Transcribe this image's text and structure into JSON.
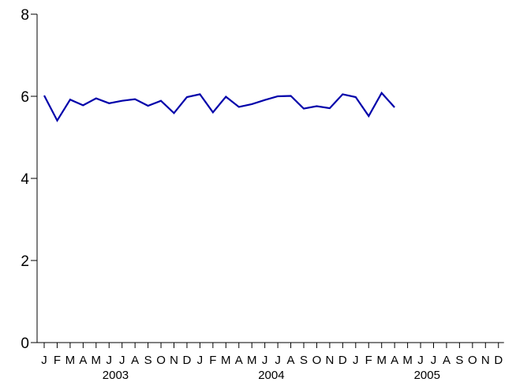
{
  "chart_data": {
    "type": "line",
    "title": "",
    "xlabel": "",
    "ylabel": "",
    "ylim": [
      0,
      8
    ],
    "yticks": [
      0,
      2,
      4,
      6,
      8
    ],
    "x_range": [
      "2003-01",
      "2005-12"
    ],
    "month_labels": [
      "J",
      "F",
      "M",
      "A",
      "M",
      "J",
      "J",
      "A",
      "S",
      "O",
      "N",
      "D",
      "J",
      "F",
      "M",
      "A",
      "M",
      "J",
      "J",
      "A",
      "S",
      "O",
      "N",
      "D",
      "J",
      "F",
      "M",
      "A",
      "M",
      "J",
      "J",
      "A",
      "S",
      "O",
      "N",
      "D"
    ],
    "year_labels": [
      {
        "label": "2003",
        "months": [
          "2003-01",
          "2003-12"
        ]
      },
      {
        "label": "2004",
        "months": [
          "2004-01",
          "2004-12"
        ]
      },
      {
        "label": "2005",
        "months": [
          "2005-01",
          "2005-12"
        ]
      }
    ],
    "grid": false,
    "legend": false,
    "series": [
      {
        "color": "#0000aa",
        "x": [
          "2003-01",
          "2003-02",
          "2003-03",
          "2003-04",
          "2003-05",
          "2003-06",
          "2003-07",
          "2003-08",
          "2003-09",
          "2003-10",
          "2003-11",
          "2003-12",
          "2004-01",
          "2004-02",
          "2004-03",
          "2004-04",
          "2004-05",
          "2004-06",
          "2004-07",
          "2004-08",
          "2004-09",
          "2004-10",
          "2004-11",
          "2004-12",
          "2005-01",
          "2005-02",
          "2005-03",
          "2005-04"
        ],
        "values": [
          6.02,
          5.41,
          5.92,
          5.78,
          5.95,
          5.83,
          5.89,
          5.93,
          5.77,
          5.89,
          5.59,
          5.98,
          6.05,
          5.61,
          5.99,
          5.74,
          5.81,
          5.91,
          6.0,
          6.01,
          5.7,
          5.76,
          5.71,
          6.05,
          5.98,
          5.52,
          6.08,
          5.73
        ]
      }
    ]
  }
}
